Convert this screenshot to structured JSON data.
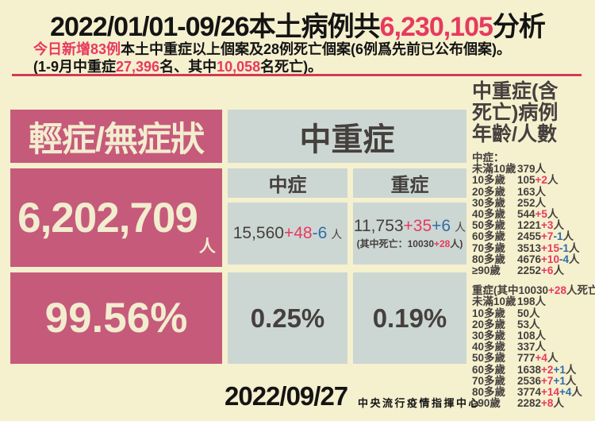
{
  "header": {
    "title_p1": "2022/01/01-09/26本土病例共",
    "title_number": "6,230,105",
    "title_p2": "分析",
    "line2_red": "今日新增83例",
    "line2_rest": "本土中重症以上個案及28例死亡個案(6例爲先前已公布個案)。",
    "line3_p1": "(1-9月中重症",
    "line3_n1": "27,396",
    "line3_p2": "名、其中",
    "line3_n2": "10,058",
    "line3_p3": "名死亡)。"
  },
  "panels": {
    "mild": {
      "title": "輕症/無症狀",
      "count": "6,202,709",
      "unit": "人",
      "percent": "99.56%"
    },
    "moderate_severe_title": "中重症",
    "moderate": {
      "title": "中症",
      "base": "15,560",
      "delta_red": "+48",
      "delta_blue": "-6",
      "unit": "人",
      "percent": "0.25%"
    },
    "severe": {
      "title": "重症",
      "base": "11,753",
      "delta_red": "+35",
      "delta_blue": "+6",
      "unit": "人",
      "note_p1": "(其中死亡：10030",
      "note_red": "+28",
      "note_p2": "人)",
      "percent": "0.19%"
    }
  },
  "sidebar": {
    "title_lines": [
      "中重症(含",
      "死亡)病例",
      "年齡/人數"
    ],
    "row_unit": "人",
    "moderate_header": "中症：",
    "moderate_rows": [
      {
        "age": "未滿10歲",
        "base": "379",
        "red": "",
        "blue": ""
      },
      {
        "age": "10多歲",
        "base": "105",
        "red": "+2",
        "blue": ""
      },
      {
        "age": "20多歲",
        "base": "163",
        "red": "",
        "blue": ""
      },
      {
        "age": "30多歲",
        "base": "252",
        "red": "",
        "blue": ""
      },
      {
        "age": "40多歲",
        "base": "544",
        "red": "+5",
        "blue": ""
      },
      {
        "age": "50多歲",
        "base": "1221",
        "red": "+3",
        "blue": ""
      },
      {
        "age": "60多歲",
        "base": "2455",
        "red": "+7",
        "blue": "-1"
      },
      {
        "age": "70多歲",
        "base": "3513",
        "red": "+15",
        "blue": "-1"
      },
      {
        "age": "80多歲",
        "base": "4676",
        "red": "+10",
        "blue": "-4"
      },
      {
        "age": "≥90歲",
        "base": "2252",
        "red": "+6",
        "blue": ""
      }
    ],
    "severe_header_p1": "重症(其中10030",
    "severe_header_red": "+28",
    "severe_header_p2": "人死亡)：",
    "severe_rows": [
      {
        "age": "未滿10歲",
        "base": "198",
        "red": "",
        "blue": ""
      },
      {
        "age": "10多歲",
        "base": "50",
        "red": "",
        "blue": ""
      },
      {
        "age": "20多歲",
        "base": "53",
        "red": "",
        "blue": ""
      },
      {
        "age": "30多歲",
        "base": "108",
        "red": "",
        "blue": ""
      },
      {
        "age": "40多歲",
        "base": "337",
        "red": "",
        "blue": ""
      },
      {
        "age": "50多歲",
        "base": "777",
        "red": "+4",
        "blue": ""
      },
      {
        "age": "60多歲",
        "base": "1638",
        "red": "+2",
        "blue": "+1"
      },
      {
        "age": "70多歲",
        "base": "2536",
        "red": "+7",
        "blue": "+1"
      },
      {
        "age": "80多歲",
        "base": "3774",
        "red": "+14",
        "blue": "+4"
      },
      {
        "age": "≥90歲",
        "base": "2282",
        "red": "+8",
        "blue": ""
      }
    ]
  },
  "footer": {
    "date": "2022/09/27",
    "org": "中央流行疫情指揮中心"
  },
  "colors": {
    "background": "#f5f0ce",
    "pink": "#c65a7b",
    "panel_gray": "#ccd7d3",
    "cream_text": "#f2edcf",
    "dark_text": "#45403e",
    "red": "#e8395f",
    "blue": "#2f6da8",
    "rule": "#d23b57",
    "black_text": "#141414"
  }
}
